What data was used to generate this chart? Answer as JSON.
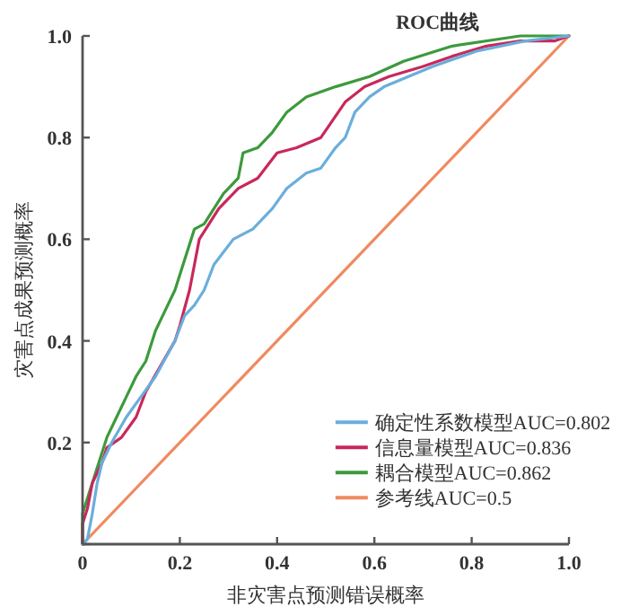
{
  "chart_data": {
    "type": "line",
    "title": "ROC曲线",
    "xlabel": "非灾害点预测错误概率",
    "ylabel": "灾害点成果预测概率",
    "xlim": [
      0,
      1
    ],
    "ylim": [
      0,
      1
    ],
    "xticks": [
      0,
      0.2,
      0.4,
      0.6,
      0.8,
      {
        "value": 1,
        "label": "1.0"
      }
    ],
    "yticks": [
      {
        "value": 0,
        "label": null
      },
      0.2,
      0.4,
      0.6,
      0.8,
      {
        "value": 1,
        "label": "1.0"
      }
    ],
    "legend": "bottom right",
    "grid": false,
    "marker": "none",
    "line_style": "solid",
    "series": [
      {
        "name": "确定性系数模型AUC=0.802",
        "color": "#6aaedc",
        "x": [
          0,
          0.01,
          0.02,
          0.03,
          0.04,
          0.06,
          0.09,
          0.12,
          0.15,
          0.19,
          0.21,
          0.23,
          0.25,
          0.27,
          0.31,
          0.35,
          0.39,
          0.42,
          0.46,
          0.49,
          0.52,
          0.54,
          0.56,
          0.59,
          0.62,
          0.67,
          0.72,
          0.81,
          0.91,
          1
        ],
        "values": [
          0,
          0.01,
          0.06,
          0.12,
          0.16,
          0.2,
          0.25,
          0.29,
          0.33,
          0.4,
          0.45,
          0.47,
          0.5,
          0.55,
          0.6,
          0.62,
          0.66,
          0.7,
          0.73,
          0.74,
          0.78,
          0.8,
          0.85,
          0.88,
          0.9,
          0.92,
          0.94,
          0.97,
          0.99,
          1
        ]
      },
      {
        "name": "信息量模型AUC=0.836",
        "color": "#c8285a",
        "x": [
          0,
          0,
          0.01,
          0.02,
          0.04,
          0.05,
          0.08,
          0.11,
          0.13,
          0.16,
          0.19,
          0.2,
          0.22,
          0.23,
          0.24,
          0.26,
          0.28,
          0.32,
          0.36,
          0.4,
          0.44,
          0.49,
          0.54,
          0.58,
          0.63,
          0.7,
          0.76,
          0.83,
          0.9,
          0.97,
          1
        ],
        "values": [
          0,
          0.04,
          0.07,
          0.12,
          0.16,
          0.19,
          0.21,
          0.25,
          0.3,
          0.35,
          0.4,
          0.43,
          0.5,
          0.55,
          0.6,
          0.63,
          0.66,
          0.7,
          0.72,
          0.77,
          0.78,
          0.8,
          0.87,
          0.9,
          0.92,
          0.94,
          0.96,
          0.98,
          0.99,
          0.99,
          1
        ]
      },
      {
        "name": "耦合模型AUC=0.862",
        "color": "#3c9a3c",
        "x": [
          0,
          0,
          0.01,
          0.02,
          0.04,
          0.05,
          0.07,
          0.09,
          0.11,
          0.13,
          0.15,
          0.17,
          0.19,
          0.21,
          0.23,
          0.25,
          0.27,
          0.29,
          0.32,
          0.33,
          0.36,
          0.39,
          0.42,
          0.46,
          0.52,
          0.59,
          0.66,
          0.76,
          0.9,
          1
        ],
        "values": [
          0,
          0.06,
          0.09,
          0.12,
          0.18,
          0.21,
          0.25,
          0.29,
          0.33,
          0.36,
          0.42,
          0.46,
          0.5,
          0.56,
          0.62,
          0.63,
          0.66,
          0.69,
          0.72,
          0.77,
          0.78,
          0.81,
          0.85,
          0.88,
          0.9,
          0.92,
          0.95,
          0.98,
          1,
          1
        ]
      },
      {
        "name": "参考线AUC=0.5",
        "color": "#f08a60",
        "x": [
          0,
          1
        ],
        "values": [
          0,
          1
        ]
      }
    ]
  }
}
